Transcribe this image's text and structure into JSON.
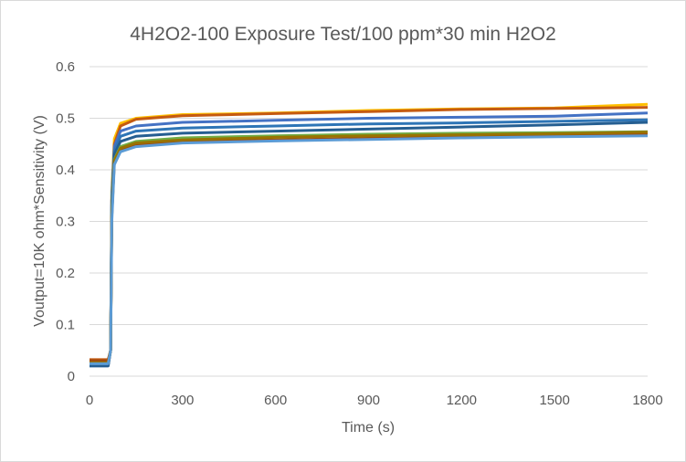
{
  "chart_data": {
    "type": "line",
    "title": "4H2O2-100 Exposure Test/100 ppm*30 min H2O2",
    "xlabel": "Time (s)",
    "ylabel": "Voutput=10K ohm*Sensitivity (V)",
    "xlim": [
      0,
      1800
    ],
    "ylim": [
      0,
      0.6
    ],
    "xticks": [
      0,
      300,
      600,
      900,
      1200,
      1500,
      1800
    ],
    "yticks": [
      0,
      0.1,
      0.2,
      0.3,
      0.4,
      0.5,
      0.6
    ],
    "ytick_labels": [
      "0",
      "0.1",
      "0.2",
      "0.3",
      "0.4",
      "0.5",
      "0.6"
    ],
    "grid": true,
    "legend": "none",
    "x": [
      0,
      60,
      68,
      72,
      80,
      100,
      150,
      300,
      600,
      900,
      1200,
      1500,
      1800
    ],
    "series": [
      {
        "color": "#FFC000",
        "values": [
          0.025,
          0.025,
          0.05,
          0.36,
          0.46,
          0.49,
          0.5,
          0.507,
          0.51,
          0.515,
          0.518,
          0.52,
          0.527
        ]
      },
      {
        "color": "#C55A11",
        "values": [
          0.032,
          0.032,
          0.05,
          0.34,
          0.45,
          0.485,
          0.498,
          0.505,
          0.509,
          0.513,
          0.517,
          0.519,
          0.521
        ]
      },
      {
        "color": "#4472C4",
        "values": [
          0.022,
          0.022,
          0.05,
          0.35,
          0.445,
          0.475,
          0.485,
          0.492,
          0.496,
          0.5,
          0.502,
          0.504,
          0.51
        ]
      },
      {
        "color": "#2E75B6",
        "values": [
          0.02,
          0.02,
          0.05,
          0.34,
          0.435,
          0.465,
          0.475,
          0.481,
          0.485,
          0.489,
          0.491,
          0.494,
          0.497
        ]
      },
      {
        "color": "#255E91",
        "values": [
          0.02,
          0.02,
          0.05,
          0.33,
          0.43,
          0.455,
          0.465,
          0.471,
          0.475,
          0.479,
          0.483,
          0.487,
          0.492
        ]
      },
      {
        "color": "#70AD47",
        "values": [
          0.028,
          0.028,
          0.05,
          0.32,
          0.42,
          0.445,
          0.455,
          0.462,
          0.466,
          0.469,
          0.471,
          0.472,
          0.474
        ]
      },
      {
        "color": "#9E480E",
        "values": [
          0.03,
          0.03,
          0.05,
          0.31,
          0.415,
          0.438,
          0.448,
          0.454,
          0.458,
          0.461,
          0.463,
          0.466,
          0.469
        ]
      },
      {
        "color": "#997300",
        "values": [
          0.026,
          0.026,
          0.05,
          0.31,
          0.418,
          0.442,
          0.452,
          0.458,
          0.463,
          0.466,
          0.468,
          0.47,
          0.473
        ]
      },
      {
        "color": "#5B9BD5",
        "values": [
          0.024,
          0.024,
          0.05,
          0.3,
          0.41,
          0.435,
          0.445,
          0.452,
          0.456,
          0.459,
          0.462,
          0.464,
          0.466
        ]
      }
    ]
  }
}
